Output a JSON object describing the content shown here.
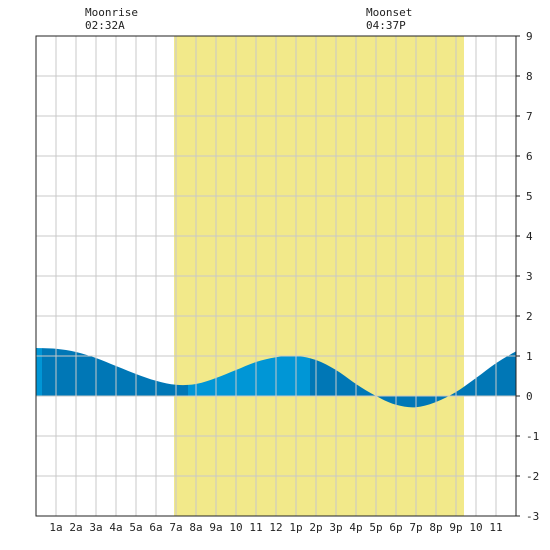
{
  "moon": {
    "rise_label": "Moonrise",
    "rise_time": "02:32A",
    "set_label": "Moonset",
    "set_time": "04:37P"
  },
  "chart_data": {
    "type": "area",
    "title": "",
    "xlabel": "",
    "ylabel": "",
    "x_unit": "hour of day",
    "xlim": [
      -1,
      23
    ],
    "ylim": [
      -3,
      9
    ],
    "x_tick_labels": [
      "1a",
      "2a",
      "3a",
      "4a",
      "5a",
      "6a",
      "7a",
      "8a",
      "9a",
      "10",
      "11",
      "12",
      "1p",
      "2p",
      "3p",
      "4p",
      "5p",
      "6p",
      "7p",
      "8p",
      "9p",
      "10",
      "11"
    ],
    "y_ticks": [
      -3,
      -2,
      -1,
      0,
      1,
      2,
      3,
      4,
      5,
      6,
      7,
      8,
      9
    ],
    "grid": true,
    "daylight_range_hours": [
      5.9,
      20.4
    ],
    "colors": {
      "daylight": "#f2e98a",
      "tide_fill": "#0096d6",
      "tide_fill_dark": "#0077b6",
      "grid": "#c8c8c8",
      "axis": "#222222"
    },
    "series": [
      {
        "x": [
          -1,
          0,
          1,
          2,
          3,
          4,
          5,
          6,
          7,
          8,
          9,
          10,
          11,
          12,
          13,
          14,
          15,
          16,
          17,
          18,
          19,
          20,
          21,
          22,
          23
        ],
        "y": [
          1.2,
          1.18,
          1.1,
          0.95,
          0.75,
          0.55,
          0.38,
          0.28,
          0.3,
          0.45,
          0.65,
          0.85,
          0.97,
          1.0,
          0.9,
          0.65,
          0.3,
          0.0,
          -0.22,
          -0.28,
          -0.15,
          0.1,
          0.45,
          0.82,
          1.12
        ]
      }
    ],
    "extrema": [
      {
        "type": "high",
        "x": -0.7,
        "y": 1.2
      },
      {
        "type": "low",
        "x": 6.6,
        "y": 0.28
      },
      {
        "type": "high",
        "x": 12.7,
        "y": 1.0
      },
      {
        "type": "low",
        "x": 18.9,
        "y": -0.28
      }
    ]
  }
}
